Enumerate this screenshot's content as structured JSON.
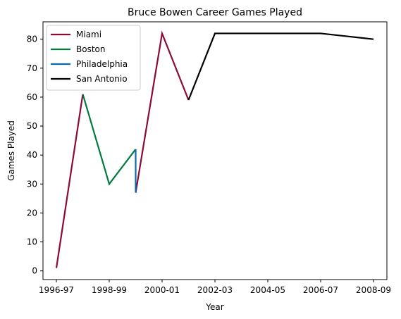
{
  "chart_data": {
    "type": "line",
    "title": "Bruce Bowen Career Games Played",
    "xlabel": "Year",
    "ylabel": "Games Played",
    "x_categories": [
      "1996-97",
      "1997-98",
      "1998-99",
      "1999-00",
      "2000-01",
      "2001-02",
      "2002-03",
      "2003-04",
      "2004-05",
      "2005-06",
      "2006-07",
      "2007-08",
      "2008-09"
    ],
    "x_ticks": [
      "1996-97",
      "1998-99",
      "2000-01",
      "2002-03",
      "2004-05",
      "2006-07",
      "2008-09"
    ],
    "ylim": [
      -3,
      86
    ],
    "y_ticks": [
      0,
      10,
      20,
      30,
      40,
      50,
      60,
      70,
      80
    ],
    "grid": false,
    "legend_position": "top-left",
    "series": [
      {
        "name": "Miami",
        "color": "#8b0a3a",
        "points": [
          {
            "x": "1996-97",
            "y": 1
          },
          {
            "x": "1997-98",
            "y": 61
          },
          {
            "x": null,
            "y": null
          },
          {
            "x": "1999-00",
            "y": 27
          },
          {
            "x": "2000-01",
            "y": 82
          },
          {
            "x": "2001-02",
            "y": 59
          }
        ]
      },
      {
        "name": "Boston",
        "color": "#007a3d",
        "points": [
          {
            "x": "1997-98",
            "y": 61
          },
          {
            "x": "1998-99",
            "y": 30
          },
          {
            "x": "1999-00",
            "y": 42
          }
        ]
      },
      {
        "name": "Philadelphia",
        "color": "#0a6ab0",
        "points": [
          {
            "x": "1999-00",
            "y": 42
          },
          {
            "x": "1999-00",
            "y": 27
          }
        ]
      },
      {
        "name": "San Antonio",
        "color": "#000000",
        "points": [
          {
            "x": "2001-02",
            "y": 59
          },
          {
            "x": "2002-03",
            "y": 82
          },
          {
            "x": "2003-04",
            "y": 82
          },
          {
            "x": "2004-05",
            "y": 82
          },
          {
            "x": "2005-06",
            "y": 82
          },
          {
            "x": "2006-07",
            "y": 82
          },
          {
            "x": "2007-08",
            "y": 81
          },
          {
            "x": "2008-09",
            "y": 80
          }
        ]
      }
    ]
  }
}
